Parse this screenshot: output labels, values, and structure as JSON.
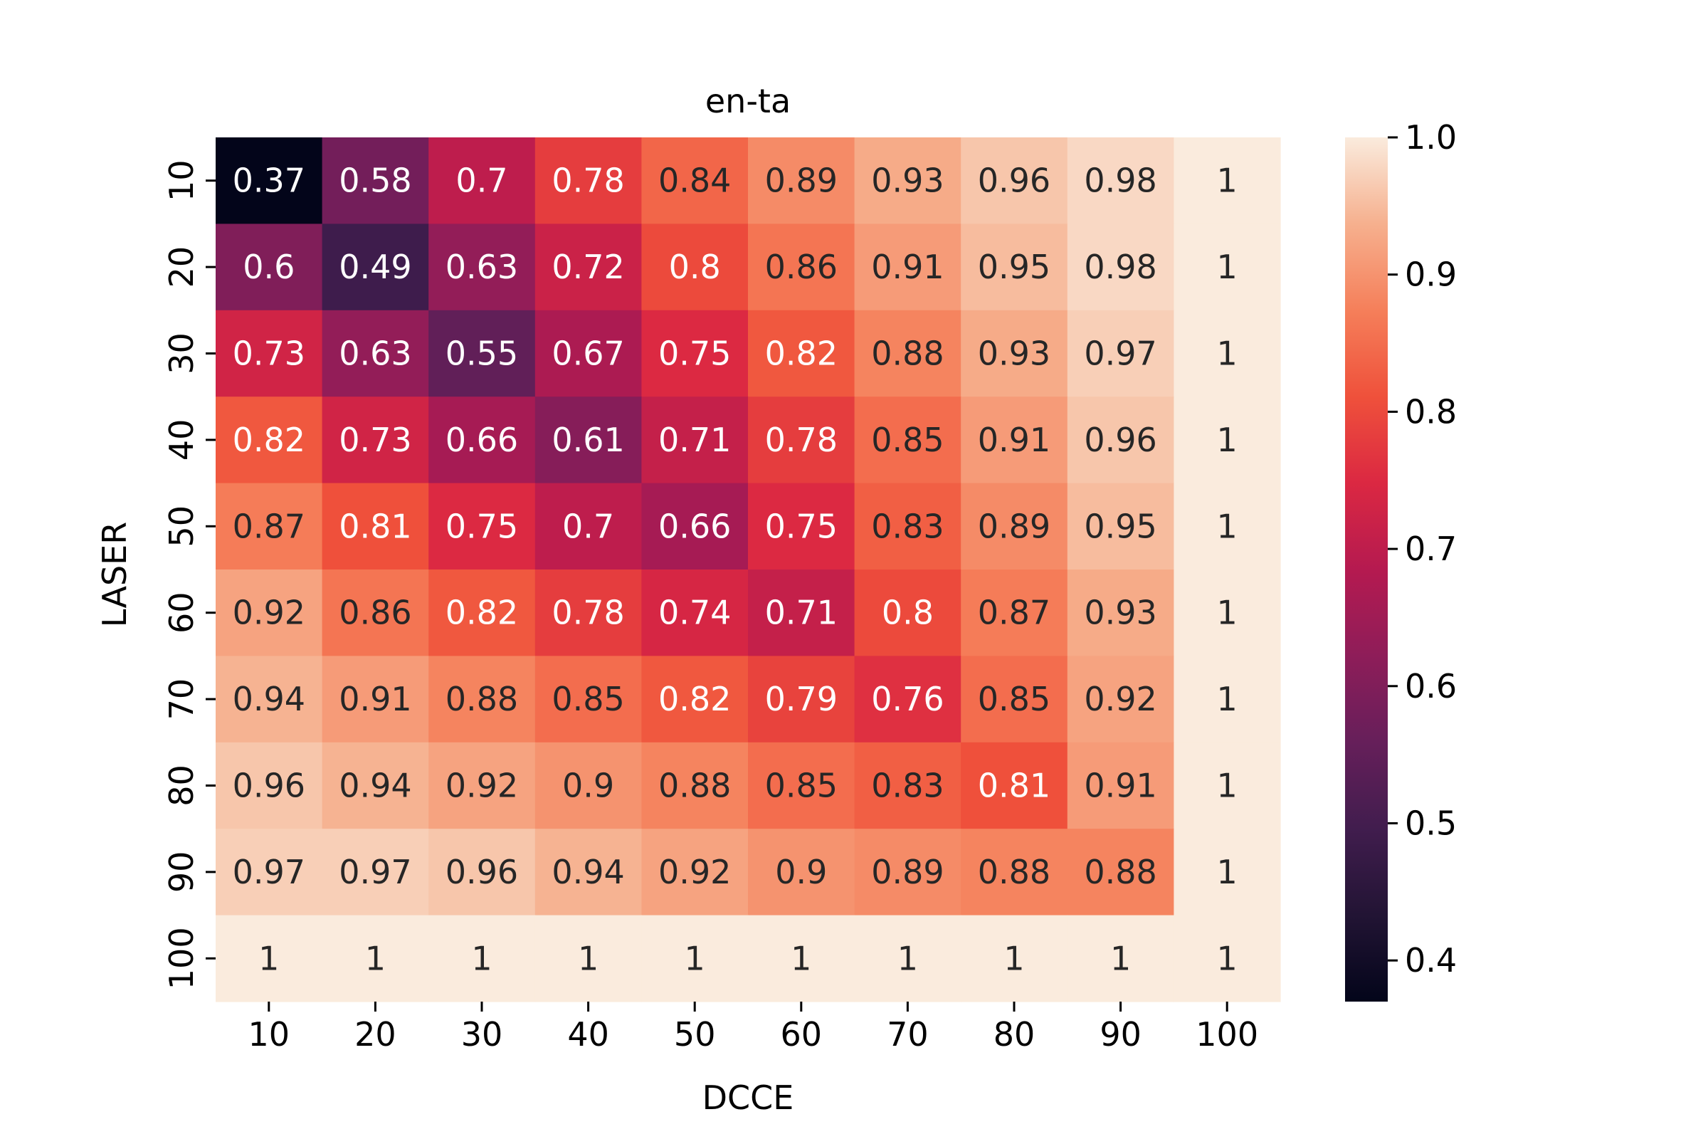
{
  "chart_data": {
    "type": "heatmap",
    "title": "en-ta",
    "xlabel": "DCCE",
    "ylabel": "LASER",
    "x_categories": [
      "10",
      "20",
      "30",
      "40",
      "50",
      "60",
      "70",
      "80",
      "90",
      "100"
    ],
    "y_categories": [
      "10",
      "20",
      "30",
      "40",
      "50",
      "60",
      "70",
      "80",
      "90",
      "100"
    ],
    "values": [
      [
        0.37,
        0.58,
        0.7,
        0.78,
        0.84,
        0.89,
        0.93,
        0.96,
        0.98,
        1
      ],
      [
        0.6,
        0.49,
        0.63,
        0.72,
        0.8,
        0.86,
        0.91,
        0.95,
        0.98,
        1
      ],
      [
        0.73,
        0.63,
        0.55,
        0.67,
        0.75,
        0.82,
        0.88,
        0.93,
        0.97,
        1
      ],
      [
        0.82,
        0.73,
        0.66,
        0.61,
        0.71,
        0.78,
        0.85,
        0.91,
        0.96,
        1
      ],
      [
        0.87,
        0.81,
        0.75,
        0.7,
        0.66,
        0.75,
        0.83,
        0.89,
        0.95,
        1
      ],
      [
        0.92,
        0.86,
        0.82,
        0.78,
        0.74,
        0.71,
        0.8,
        0.87,
        0.93,
        1
      ],
      [
        0.94,
        0.91,
        0.88,
        0.85,
        0.82,
        0.79,
        0.76,
        0.85,
        0.92,
        1
      ],
      [
        0.96,
        0.94,
        0.92,
        0.9,
        0.88,
        0.85,
        0.83,
        0.81,
        0.91,
        1
      ],
      [
        0.97,
        0.97,
        0.96,
        0.94,
        0.92,
        0.9,
        0.89,
        0.88,
        0.88,
        1
      ],
      [
        1,
        1,
        1,
        1,
        1,
        1,
        1,
        1,
        1,
        1
      ]
    ],
    "colorbar": {
      "min": 0.37,
      "max": 1.0,
      "ticks": [
        "0.4",
        "0.5",
        "0.6",
        "0.7",
        "0.8",
        "0.9",
        "1.0"
      ]
    },
    "colormap": "rocket"
  }
}
